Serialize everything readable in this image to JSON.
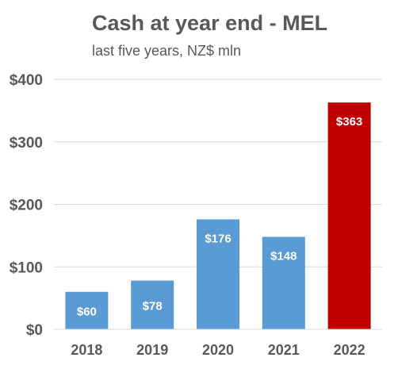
{
  "chart_data": {
    "type": "bar",
    "title": "Cash at year end - MEL",
    "subtitle": "last five years, NZ$ mln",
    "xlabel": "",
    "ylabel": "",
    "categories": [
      "2018",
      "2019",
      "2020",
      "2021",
      "2022"
    ],
    "values": [
      60,
      78,
      176,
      148,
      363
    ],
    "data_labels": [
      "$60",
      "$78",
      "$176",
      "$148",
      "$363"
    ],
    "ylim": [
      0,
      400
    ],
    "yticks": [
      0,
      100,
      200,
      300,
      400
    ],
    "ytick_labels": [
      "$0",
      "$100",
      "$200",
      "$300",
      "$400"
    ],
    "grid": true,
    "legend": "none",
    "colors": {
      "bar": "#5B9BD5",
      "highlight_bar": "#C00000",
      "grid": "#D9D9D9",
      "text": "#595959"
    },
    "highlight_index": 4
  }
}
